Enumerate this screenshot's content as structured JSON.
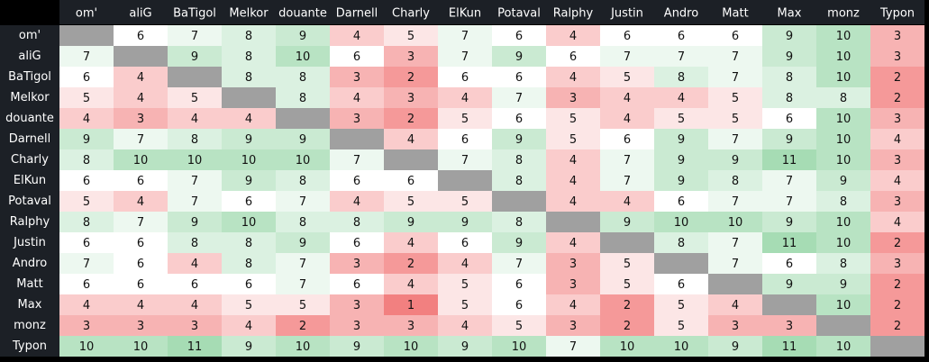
{
  "table": {
    "columns": [
      "om'",
      "aliG",
      "BaTigol",
      "Melkor",
      "douante",
      "Darnell",
      "Charly",
      "ElKun",
      "Potaval",
      "Ralphy",
      "Justin",
      "Andro",
      "Matt",
      "Max",
      "monz",
      "Typon"
    ],
    "rows": [
      {
        "name": "om'",
        "values": [
          null,
          6,
          7,
          8,
          9,
          4,
          5,
          7,
          6,
          4,
          6,
          6,
          6,
          9,
          10,
          3
        ]
      },
      {
        "name": "aliG",
        "values": [
          7,
          null,
          9,
          8,
          10,
          6,
          3,
          7,
          9,
          6,
          7,
          7,
          7,
          9,
          10,
          3
        ]
      },
      {
        "name": "BaTigol",
        "values": [
          6,
          4,
          null,
          8,
          8,
          3,
          2,
          6,
          6,
          4,
          5,
          8,
          7,
          8,
          10,
          2
        ]
      },
      {
        "name": "Melkor",
        "values": [
          5,
          4,
          5,
          null,
          8,
          4,
          3,
          4,
          7,
          3,
          4,
          4,
          5,
          8,
          8,
          2
        ]
      },
      {
        "name": "douante",
        "values": [
          4,
          3,
          4,
          4,
          null,
          3,
          2,
          5,
          6,
          5,
          4,
          5,
          5,
          6,
          10,
          3
        ]
      },
      {
        "name": "Darnell",
        "values": [
          9,
          7,
          8,
          9,
          9,
          null,
          4,
          6,
          9,
          5,
          6,
          9,
          7,
          9,
          10,
          4
        ]
      },
      {
        "name": "Charly",
        "values": [
          8,
          10,
          10,
          10,
          10,
          7,
          null,
          7,
          8,
          4,
          7,
          9,
          9,
          11,
          10,
          3
        ]
      },
      {
        "name": "ElKun",
        "values": [
          6,
          6,
          7,
          9,
          8,
          6,
          6,
          null,
          8,
          4,
          7,
          9,
          8,
          7,
          9,
          4
        ]
      },
      {
        "name": "Potaval",
        "values": [
          5,
          4,
          7,
          6,
          7,
          4,
          5,
          5,
          null,
          4,
          4,
          6,
          7,
          7,
          8,
          3
        ]
      },
      {
        "name": "Ralphy",
        "values": [
          8,
          7,
          9,
          10,
          8,
          8,
          9,
          9,
          8,
          null,
          9,
          10,
          10,
          9,
          10,
          4
        ]
      },
      {
        "name": "Justin",
        "values": [
          6,
          6,
          8,
          8,
          9,
          6,
          4,
          6,
          9,
          4,
          null,
          8,
          7,
          11,
          10,
          2
        ]
      },
      {
        "name": "Andro",
        "values": [
          7,
          6,
          4,
          8,
          7,
          3,
          2,
          4,
          7,
          3,
          5,
          null,
          7,
          6,
          8,
          3
        ]
      },
      {
        "name": "Matt",
        "values": [
          6,
          6,
          6,
          6,
          7,
          6,
          4,
          5,
          6,
          3,
          5,
          6,
          null,
          9,
          9,
          2
        ]
      },
      {
        "name": "Max",
        "values": [
          4,
          4,
          4,
          5,
          5,
          3,
          1,
          5,
          6,
          4,
          2,
          5,
          4,
          null,
          10,
          2
        ]
      },
      {
        "name": "monz",
        "values": [
          3,
          3,
          3,
          4,
          2,
          3,
          3,
          4,
          5,
          3,
          2,
          5,
          3,
          3,
          null,
          2
        ]
      },
      {
        "name": "Typon",
        "values": [
          10,
          10,
          11,
          9,
          10,
          9,
          10,
          9,
          10,
          7,
          10,
          10,
          9,
          11,
          10,
          null
        ]
      }
    ],
    "colors": {
      "low": "#f28080",
      "mid": "#ffffff",
      "high": "#a6dcb4",
      "empty": "#a0a0a0"
    }
  }
}
